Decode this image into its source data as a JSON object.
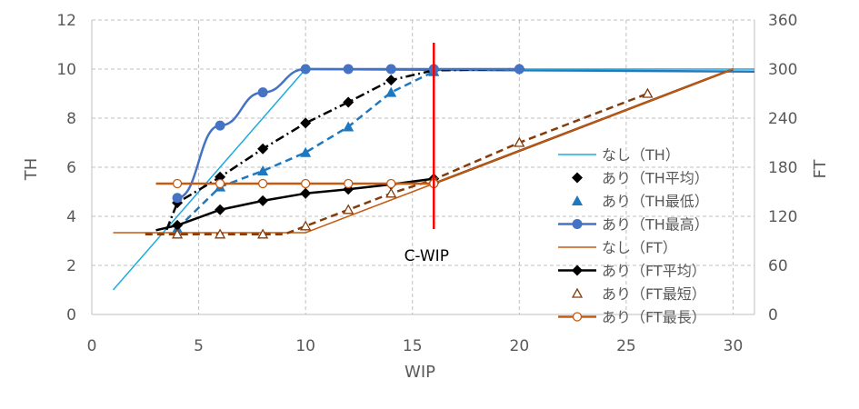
{
  "chart_data": {
    "type": "line",
    "xlabel": "WIP",
    "ylabel": "TH",
    "y2label": "FT",
    "xlim": [
      0,
      31
    ],
    "ylim": [
      0,
      12
    ],
    "y2lim": [
      0,
      360
    ],
    "x_ticks": [
      0,
      5,
      10,
      15,
      20,
      25,
      30
    ],
    "y_ticks": [
      0,
      2,
      4,
      6,
      8,
      10,
      12
    ],
    "y2_ticks": [
      0,
      60,
      120,
      180,
      240,
      300,
      360
    ],
    "grid": true,
    "legend_position": "right",
    "annotation": {
      "text": "C-WIP",
      "x": 16
    },
    "series": [
      {
        "name": "なし（TH）",
        "axis": "left",
        "color": "#1eaae1",
        "style": "line",
        "x": [
          1,
          10,
          31
        ],
        "y": [
          1.0,
          10.0,
          10.0
        ]
      },
      {
        "name": "あり（TH平均）",
        "axis": "left",
        "color": "#000000",
        "style": "dashdot-diamond",
        "x": [
          3.5,
          4,
          6,
          8,
          10,
          12,
          14,
          16,
          20
        ],
        "y": [
          3.45,
          4.55,
          5.6,
          6.75,
          7.8,
          8.65,
          9.55,
          9.95,
          10.0
        ]
      },
      {
        "name": "あり（TH最低）",
        "axis": "left",
        "color": "#1e78c0",
        "style": "dashed-triangle",
        "x": [
          4,
          6,
          8,
          10,
          12,
          14,
          16
        ],
        "y": [
          3.5,
          5.2,
          5.85,
          6.6,
          7.65,
          9.05,
          9.9
        ]
      },
      {
        "name": "あり（TH最高）",
        "axis": "left",
        "color": "#4472c4",
        "style": "line-circle",
        "x": [
          4,
          6,
          8,
          10,
          12,
          14,
          16,
          20
        ],
        "y": [
          4.75,
          7.7,
          9.05,
          10.0,
          10.0,
          10.0,
          10.0,
          10.0
        ]
      },
      {
        "name": "なし（FT）",
        "axis": "right",
        "color": "#c55a11",
        "style": "line",
        "x": [
          1,
          10,
          16,
          30
        ],
        "y": [
          100,
          100,
          160,
          300
        ]
      },
      {
        "name": "あり（FT平均）",
        "axis": "right",
        "color": "#000000",
        "style": "line-diamond",
        "x": [
          3,
          4,
          6,
          8,
          10,
          12,
          14,
          16
        ],
        "y": [
          103,
          109,
          128,
          139,
          148,
          153,
          159,
          166
        ]
      },
      {
        "name": "あり（FT最短）",
        "axis": "right",
        "color": "#843c0c",
        "style": "dashed-open-triangle",
        "x": [
          2.5,
          4,
          6,
          8,
          9,
          10,
          12,
          14,
          16,
          20,
          26
        ],
        "y": [
          98,
          98,
          98,
          98,
          98,
          108,
          128,
          148,
          165,
          210,
          270
        ]
      },
      {
        "name": "あり（FT最長）",
        "axis": "right",
        "color": "#c55a11",
        "style": "line-open-circle",
        "x": [
          3,
          4,
          6,
          8,
          10,
          12,
          14,
          16
        ],
        "y": [
          160,
          160,
          160,
          160,
          160,
          160,
          160,
          160
        ]
      }
    ]
  },
  "colors": {
    "grid": "#bfbfbf",
    "cwip_line": "#ff0000",
    "th_flat_line": "#2e75b6",
    "ft_trend": "#843c0c"
  }
}
